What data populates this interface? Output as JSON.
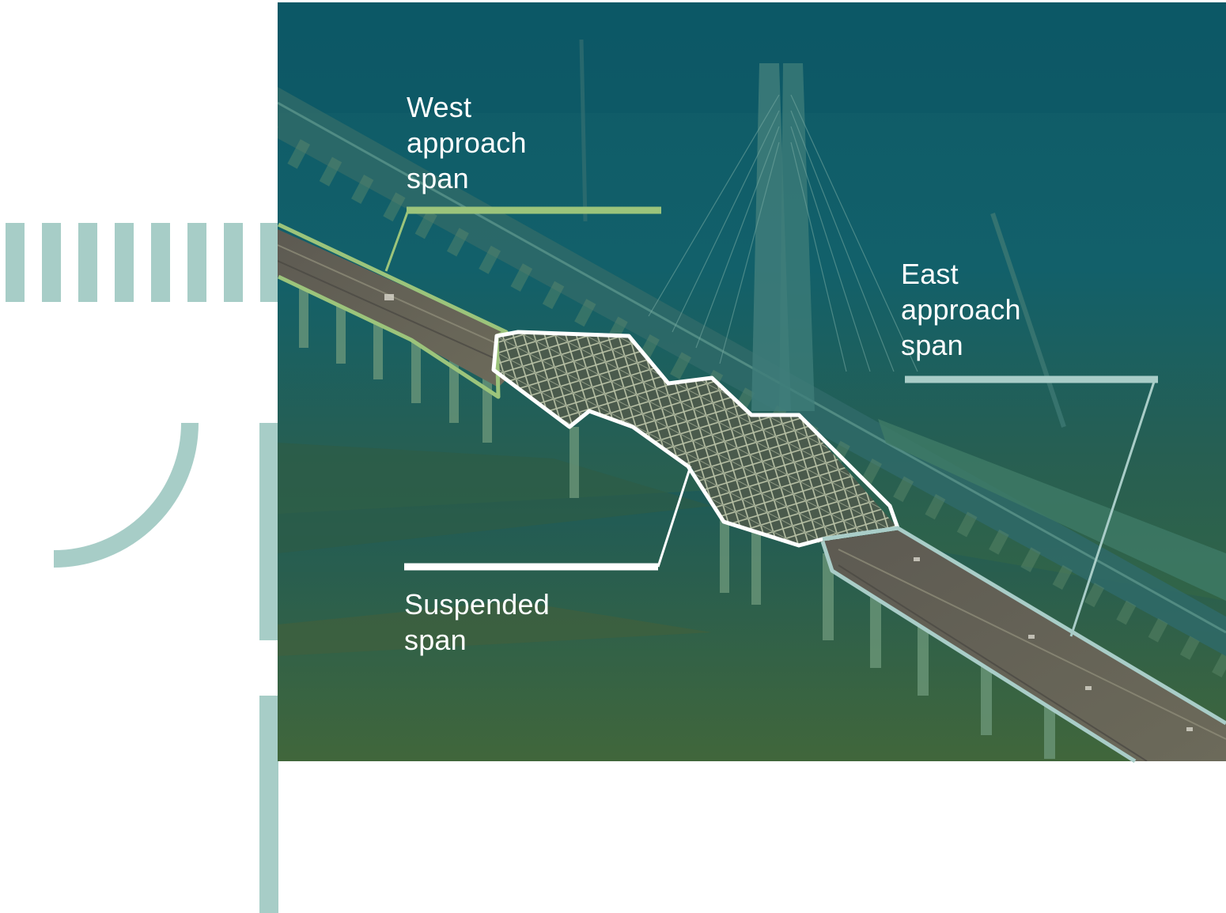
{
  "labels": {
    "west": [
      "West",
      "approach",
      "span"
    ],
    "east": [
      "East",
      "approach",
      "span"
    ],
    "suspended": [
      "Suspended",
      "span"
    ]
  },
  "colors": {
    "accent_teal": "#a7cdc7",
    "west_highlight": "#9cc47b",
    "east_highlight": "#a9cdc8",
    "suspended_highlight": "#ffffff",
    "photo_top": "#0f5a66",
    "photo_bottom": "#3f6c3e"
  },
  "icons": [
    "vertical-stripes-decoration",
    "quarter-arc-decoration",
    "vertical-bar-decoration"
  ]
}
